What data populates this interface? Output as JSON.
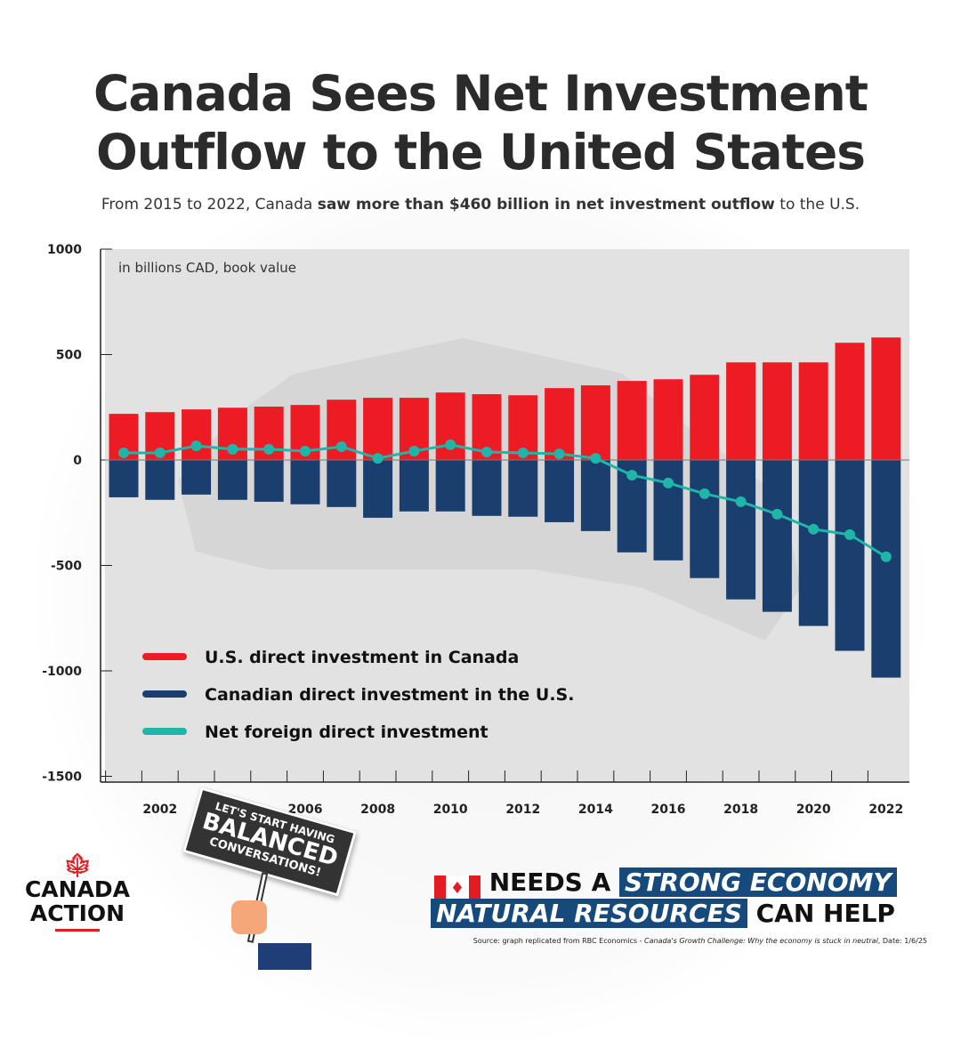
{
  "title_line1": "Canada Sees Net Investment",
  "title_line2": "Outflow to the United States",
  "subtitle_pre": "From 2015 to 2022, Canada ",
  "subtitle_bold": "saw more than $460 billion in net investment outflow",
  "subtitle_post": " to the U.S.",
  "chart_data": {
    "type": "bar",
    "annotation": "in billions CAD, book value",
    "x": [
      2001,
      2002,
      2003,
      2004,
      2005,
      2006,
      2007,
      2008,
      2009,
      2010,
      2011,
      2012,
      2013,
      2014,
      2015,
      2016,
      2017,
      2018,
      2019,
      2020,
      2021,
      2022
    ],
    "xticks": [
      "2002",
      "2006",
      "2008",
      "2010",
      "2012",
      "2014",
      "2016",
      "2018",
      "2020",
      "2022"
    ],
    "yticks": [
      "1000",
      "500",
      "0",
      "-500",
      "-1000",
      "-1500"
    ],
    "ylim": [
      -1500,
      1000
    ],
    "grid": false,
    "legend": "bottom-left",
    "series": [
      {
        "name": "U.S. direct investment in Canada",
        "type": "bar",
        "color": "#ed1c24",
        "values": [
          219,
          227,
          240,
          248,
          253,
          261,
          286,
          295,
          295,
          320,
          312,
          307,
          341,
          354,
          375,
          383,
          404,
          463,
          463,
          463,
          556,
          581
        ]
      },
      {
        "name": "Canadian direct investment in the U.S.",
        "type": "bar",
        "color": "#1a3f6e",
        "values": [
          -177,
          -189,
          -164,
          -189,
          -198,
          -210,
          -223,
          -274,
          -244,
          -244,
          -265,
          -269,
          -295,
          -337,
          -438,
          -476,
          -560,
          -661,
          -720,
          -787,
          -905,
          -1032
        ]
      },
      {
        "name": "Net foreign direct investment",
        "type": "line",
        "color": "#1fb5a8",
        "values": [
          34,
          34,
          67,
          51,
          51,
          42,
          63,
          8,
          42,
          72,
          38,
          34,
          29,
          8,
          -72,
          -109,
          -160,
          -198,
          -257,
          -328,
          -354,
          -459
        ]
      }
    ]
  },
  "sign": {
    "line1": "LET'S START HAVING",
    "line2": "BALANCED",
    "line3": "CONVERSATIONS!"
  },
  "logo": {
    "line1": "CANADA",
    "line2": "ACTION"
  },
  "tagline": {
    "needs": "NEEDS A",
    "strong": "STRONG ECONOMY",
    "natural": "NATURAL RESOURCES",
    "can": "CAN HELP"
  },
  "source": {
    "pre": "Source: graph replicated from RBC Economics - ",
    "italic": "Canada's Growth Challenge: Why the economy is stuck in neutral",
    "post": ", Date: 1/6/25"
  }
}
